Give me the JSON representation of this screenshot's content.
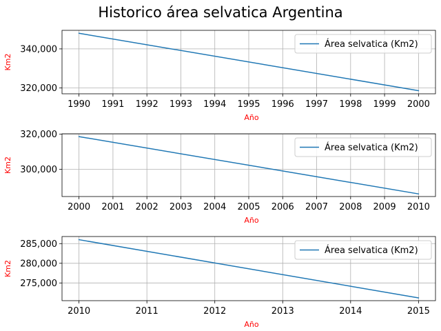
{
  "figure": {
    "title": "Historico área selvatica Argentina"
  },
  "colors": {
    "line": "#1f77b4",
    "grid": "#b0b0b0",
    "axis_label": "#ff0000",
    "text": "#000000"
  },
  "chart_data": [
    {
      "type": "line",
      "xlabel": "Año",
      "ylabel": "Km2",
      "x_ticks": [
        1990,
        1991,
        1992,
        1993,
        1994,
        1995,
        1996,
        1997,
        1998,
        1999,
        2000
      ],
      "y_ticks": [
        320000,
        340000
      ],
      "xlim": [
        1989.5,
        2000.5
      ],
      "ylim": [
        317000,
        349500
      ],
      "grid": true,
      "legend_position": "top-right",
      "series": [
        {
          "name": "Área selvatica (Km2)",
          "x": [
            1990,
            2000
          ],
          "y": [
            348000,
            318600
          ]
        }
      ]
    },
    {
      "type": "line",
      "xlabel": "Año",
      "ylabel": "Km2",
      "x_ticks": [
        2000,
        2001,
        2002,
        2003,
        2004,
        2005,
        2006,
        2007,
        2008,
        2009,
        2010
      ],
      "y_ticks": [
        300000,
        320000
      ],
      "xlim": [
        1999.5,
        2010.5
      ],
      "ylim": [
        284500,
        320200
      ],
      "grid": true,
      "legend_position": "top-right",
      "series": [
        {
          "name": "Área selvatica (Km2)",
          "x": [
            2000,
            2010
          ],
          "y": [
            318600,
            286000
          ]
        }
      ]
    },
    {
      "type": "line",
      "xlabel": "Año",
      "ylabel": "Km2",
      "x_ticks": [
        2010,
        2011,
        2012,
        2013,
        2014,
        2015
      ],
      "y_ticks": [
        275000,
        280000,
        285000
      ],
      "xlim": [
        2009.75,
        2015.25
      ],
      "ylim": [
        270500,
        286800
      ],
      "grid": true,
      "legend_position": "top-right",
      "series": [
        {
          "name": "Área selvatica (Km2)",
          "x": [
            2010,
            2015
          ],
          "y": [
            286000,
            271200
          ]
        }
      ]
    }
  ]
}
